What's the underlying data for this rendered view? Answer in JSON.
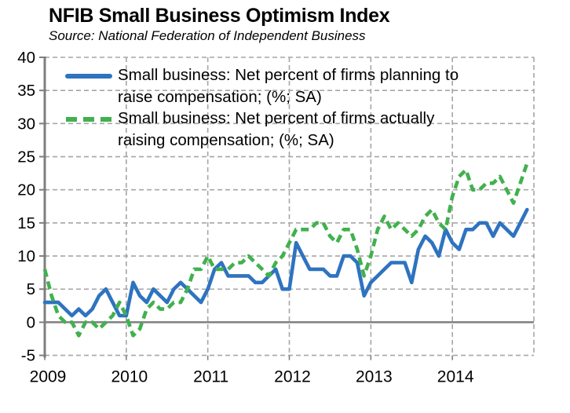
{
  "header": {
    "title": "NFIB Small Business Optimism Index",
    "subtitle": "Source: National Federation of Independent Business"
  },
  "legend": {
    "position": "top-left inside plot",
    "items": [
      {
        "line1": "Small business: Net percent of firms planning to",
        "line2": "raise compensation; (%; SA)",
        "color": "#2E73C0",
        "style": "solid"
      },
      {
        "line1": "Small business: Net percent of firms actually",
        "line2": "raising compensation; (%; SA)",
        "color": "#41B14E",
        "style": "dashed"
      }
    ]
  },
  "chart_data": {
    "type": "line",
    "title": "NFIB Small Business Optimism Index",
    "x_frequency": "monthly",
    "x_range": [
      "2009-01",
      "2014-12"
    ],
    "x_tick_labels": [
      "2009",
      "2010",
      "2011",
      "2012",
      "2013",
      "2014"
    ],
    "y_ticks": [
      -5,
      0,
      5,
      10,
      15,
      20,
      25,
      30,
      35,
      40
    ],
    "ylim": [
      -5,
      40
    ],
    "grid": "dashed gray gridlines every 5 units and every year; zero line solid",
    "legend_position": "top-left",
    "series": [
      {
        "name": "Small business: Net percent of firms planning to raise compensation; (%; SA)",
        "color": "#2E73C0",
        "line_style": "solid",
        "values": [
          3,
          3,
          3,
          2,
          1,
          2,
          1,
          2,
          4,
          5,
          3,
          1,
          1,
          6,
          4,
          3,
          5,
          4,
          3,
          5,
          6,
          5,
          4,
          3,
          5,
          8,
          9,
          7,
          7,
          7,
          7,
          6,
          6,
          7,
          8,
          5,
          5,
          12,
          10,
          8,
          8,
          8,
          7,
          7,
          10,
          10,
          9,
          4,
          6,
          7,
          8,
          9,
          9,
          9,
          6,
          11,
          13,
          12,
          10,
          14,
          12,
          11,
          14,
          14,
          15,
          15,
          13,
          15,
          14,
          13,
          15,
          17
        ]
      },
      {
        "name": "Small business: Net percent of firms actually raising compensation; (%; SA)",
        "color": "#41B14E",
        "line_style": "dashed",
        "values": [
          8,
          4,
          1,
          0,
          0,
          -2,
          0,
          0,
          -1,
          0,
          1,
          3,
          1,
          -2,
          -1,
          2,
          3,
          2,
          2,
          3,
          3,
          5,
          8,
          8,
          10,
          8,
          8,
          8,
          9,
          9,
          10,
          9,
          8,
          7,
          9,
          10,
          12,
          14,
          14,
          14,
          15,
          15,
          13,
          12,
          14,
          14,
          11,
          7,
          10,
          14,
          16,
          14,
          15,
          14,
          13,
          14,
          16,
          17,
          15,
          14,
          19,
          22,
          23,
          20,
          20,
          21,
          21,
          22,
          20,
          18,
          21,
          24
        ]
      }
    ]
  },
  "colors": {
    "grid": "#A6A6A6",
    "axis": "#7F7F7F",
    "zero_line": "#7F7F7F",
    "text": "#000000",
    "background": "#FFFFFF"
  }
}
